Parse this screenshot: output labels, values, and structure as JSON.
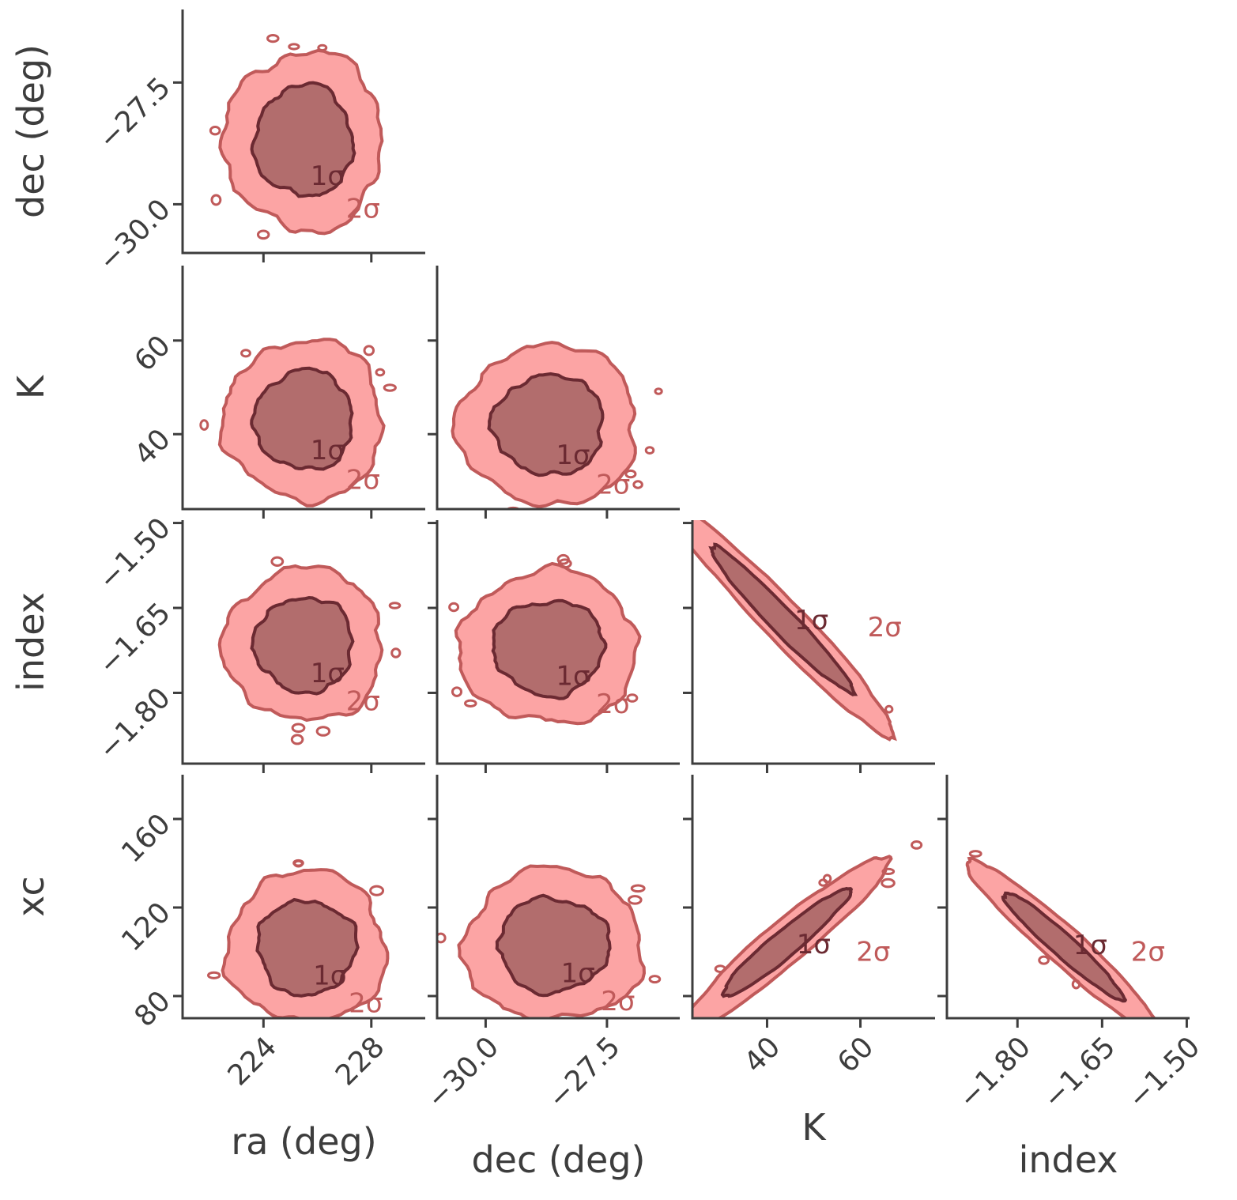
{
  "colors": {
    "axis": "#3d3d3d",
    "fill_2sigma": "#fca4a4",
    "line_2sigma": "#c05a5a",
    "fill_1sigma": "#b26d6d",
    "line_1sigma": "#6b2a32",
    "label_1sigma": "#6b2a32",
    "label_2sigma": "#c05a5a"
  },
  "chart_data": {
    "type": "corner",
    "title": "",
    "parameters": [
      {
        "name": "ra (deg)",
        "range": [
          221.0,
          230.0
        ],
        "ticks": [
          224,
          228
        ],
        "tick_labels": [
          "224",
          "228"
        ]
      },
      {
        "name": "dec (deg)",
        "range": [
          -31.0,
          -26.0
        ],
        "ticks": [
          -30.0,
          -27.5
        ],
        "tick_labels": [
          "−30.0",
          "−27.5"
        ]
      },
      {
        "name": "K",
        "range": [
          24,
          76
        ],
        "ticks": [
          40,
          60
        ],
        "tick_labels": [
          "40",
          "60"
        ]
      },
      {
        "name": "index",
        "range": [
          -1.925,
          -1.495
        ],
        "ticks": [
          -1.8,
          -1.65,
          -1.5
        ],
        "tick_labels": [
          "−1.80",
          "−1.65",
          "−1.50"
        ]
      },
      {
        "name": "xc",
        "range": [
          70,
          180
        ],
        "ticks": [
          80,
          120,
          160
        ],
        "tick_labels": [
          "80",
          "120",
          "160"
        ]
      }
    ],
    "contour_levels": [
      "1σ",
      "2σ"
    ],
    "panels": [
      {
        "x": "ra (deg)",
        "y": "dec (deg)",
        "mean": [
          225.5,
          -28.7
        ],
        "sigma": [
          1.2,
          0.75
        ],
        "rho": 0.0
      },
      {
        "x": "ra (deg)",
        "y": "K",
        "mean": [
          225.5,
          43
        ],
        "sigma": [
          1.2,
          7.0
        ],
        "rho": 0.0
      },
      {
        "x": "dec (deg)",
        "y": "K",
        "mean": [
          -28.7,
          42
        ],
        "sigma": [
          0.75,
          7.0
        ],
        "rho": 0.0
      },
      {
        "x": "ra (deg)",
        "y": "index",
        "mean": [
          225.5,
          -1.715
        ],
        "sigma": [
          1.2,
          0.055
        ],
        "rho": 0.0
      },
      {
        "x": "dec (deg)",
        "y": "index",
        "mean": [
          -28.7,
          -1.72
        ],
        "sigma": [
          0.75,
          0.055
        ],
        "rho": 0.0
      },
      {
        "x": "K",
        "y": "index",
        "mean": [
          43,
          -1.67
        ],
        "sigma": [
          10,
          0.085
        ],
        "rho": -0.97
      },
      {
        "x": "ra (deg)",
        "y": "xc",
        "mean": [
          225.6,
          102
        ],
        "sigma": [
          1.2,
          14
        ],
        "rho": 0.0
      },
      {
        "x": "dec (deg)",
        "y": "xc",
        "mean": [
          -28.6,
          103
        ],
        "sigma": [
          0.75,
          14
        ],
        "rho": 0.0
      },
      {
        "x": "K",
        "y": "xc",
        "mean": [
          44,
          104
        ],
        "sigma": [
          9,
          16
        ],
        "rho": 0.95
      },
      {
        "x": "index",
        "y": "xc",
        "mean": [
          -1.72,
          103
        ],
        "sigma": [
          0.07,
          16
        ],
        "rho": -0.96
      }
    ]
  }
}
